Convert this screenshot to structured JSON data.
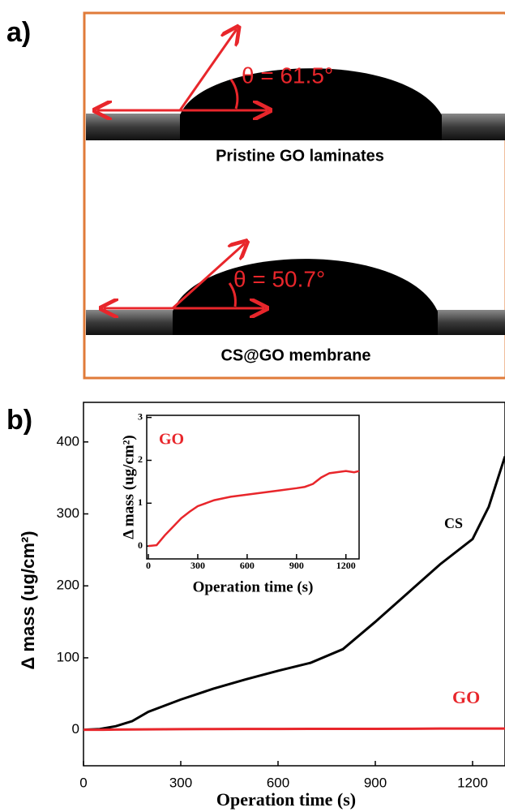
{
  "panel_a": {
    "label": "a)",
    "images": [
      {
        "angle": "θ = 61.5°",
        "caption": "Pristine GO laminates"
      },
      {
        "angle": "θ = 50.7°",
        "caption": "CS@GO membrane"
      }
    ]
  },
  "chart_data": [
    {
      "type": "line",
      "label": "b)",
      "xlabel": "Operation time (s)",
      "ylabel": "Δ mass (ug/cm²)",
      "xlim": [
        0,
        1300
      ],
      "ylim": [
        -50,
        455
      ],
      "xticks": [
        0,
        300,
        600,
        900,
        1200
      ],
      "yticks": [
        0,
        100,
        200,
        300,
        400
      ],
      "x": [
        0,
        50,
        100,
        150,
        200,
        300,
        400,
        500,
        600,
        700,
        800,
        900,
        1000,
        1100,
        1200,
        1250,
        1300
      ],
      "series": [
        {
          "name": "CS",
          "color": "#000000",
          "values": [
            0,
            1,
            5,
            12,
            25,
            42,
            57,
            70,
            82,
            93,
            112,
            150,
            190,
            230,
            265,
            310,
            380
          ]
        },
        {
          "name": "GO",
          "color": "#e8262b",
          "values": [
            0,
            0.02,
            0.25,
            0.45,
            0.65,
            0.93,
            1.07,
            1.15,
            1.2,
            1.25,
            1.3,
            1.35,
            1.45,
            1.7,
            1.75,
            1.72,
            1.75
          ]
        }
      ]
    },
    {
      "type": "line",
      "xlabel": "Operation time (s)",
      "ylabel": "Δ mass (ug/cm²)",
      "xlim": [
        -10,
        1280
      ],
      "ylim": [
        -0.3,
        3.05
      ],
      "xticks": [
        0,
        300,
        600,
        900,
        1200
      ],
      "yticks": [
        0,
        1,
        2,
        3
      ],
      "x": [
        0,
        50,
        100,
        150,
        200,
        250,
        300,
        400,
        500,
        600,
        700,
        800,
        900,
        950,
        1000,
        1050,
        1100,
        1200,
        1250,
        1280
      ],
      "series": [
        {
          "name": "GO",
          "color": "#e8262b",
          "values": [
            0,
            0.02,
            0.25,
            0.45,
            0.65,
            0.8,
            0.93,
            1.07,
            1.15,
            1.2,
            1.25,
            1.3,
            1.35,
            1.38,
            1.45,
            1.6,
            1.7,
            1.75,
            1.72,
            1.75
          ]
        }
      ]
    }
  ]
}
